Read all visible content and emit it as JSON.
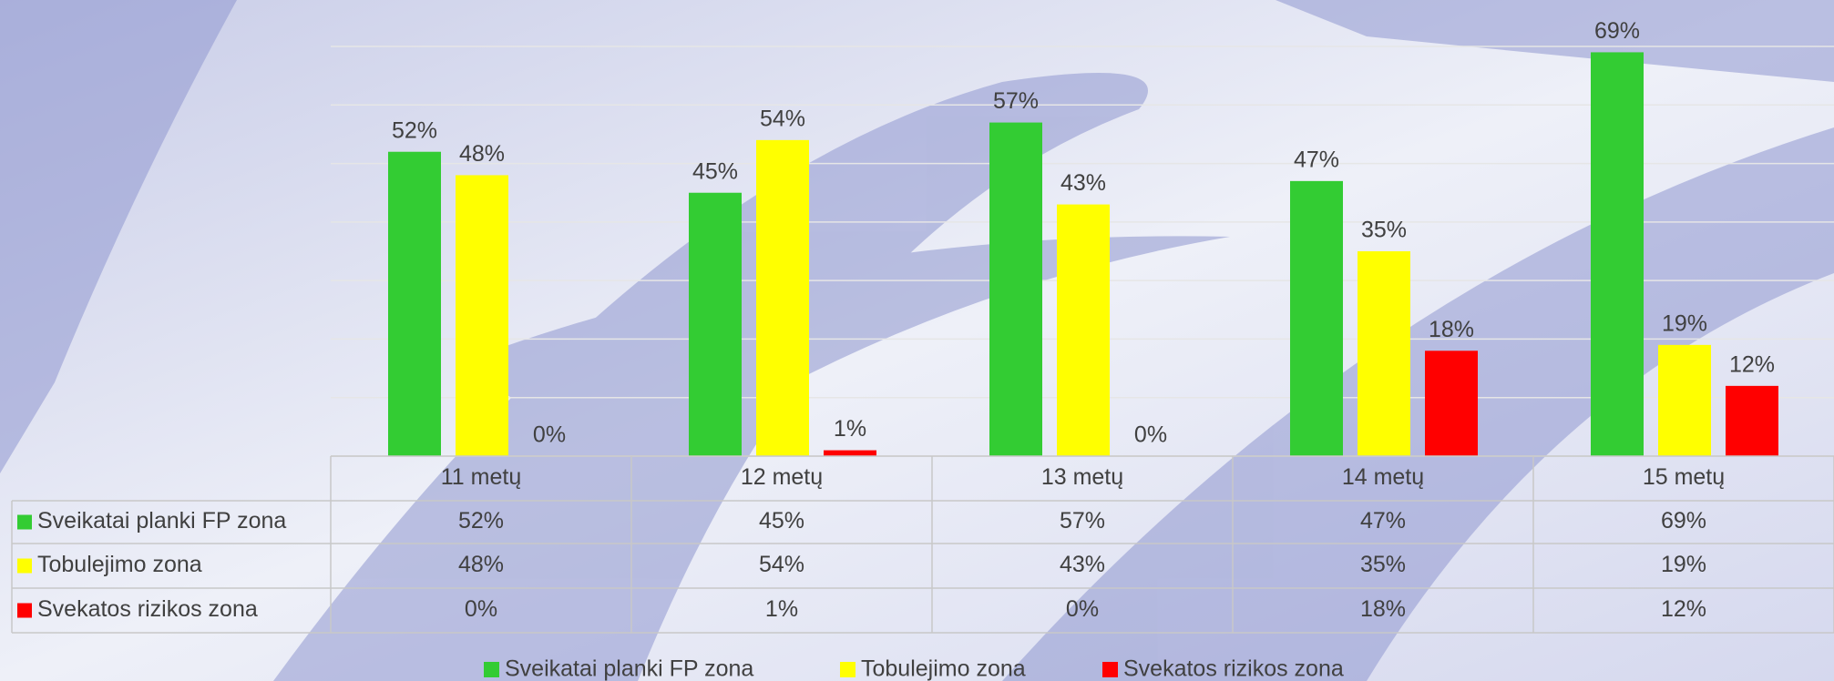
{
  "chart_data": {
    "type": "bar",
    "categories": [
      "11 metų",
      "12 metų",
      "13 metų",
      "14 metų",
      "15 metų"
    ],
    "series": [
      {
        "name": "Sveikatai planki FP zona",
        "color": "#33cc33",
        "values": [
          52,
          45,
          57,
          47,
          69
        ],
        "value_labels": [
          "52%",
          "45%",
          "57%",
          "47%",
          "69%"
        ]
      },
      {
        "name": "Tobulejimo zona",
        "color": "#ffff00",
        "values": [
          48,
          54,
          43,
          35,
          19
        ],
        "value_labels": [
          "48%",
          "54%",
          "43%",
          "35%",
          "19%"
        ]
      },
      {
        "name": "Svekatos rizikos zona",
        "color": "#ff0000",
        "values": [
          0,
          1,
          0,
          18,
          12
        ],
        "value_labels": [
          "0%",
          "1%",
          "0%",
          "18%",
          "12%"
        ]
      }
    ],
    "ylim": [
      0,
      70
    ],
    "yticks": [
      0,
      10,
      20,
      30,
      40,
      50,
      60,
      70
    ],
    "grid": true,
    "legend": "bottom",
    "data_table": true
  }
}
